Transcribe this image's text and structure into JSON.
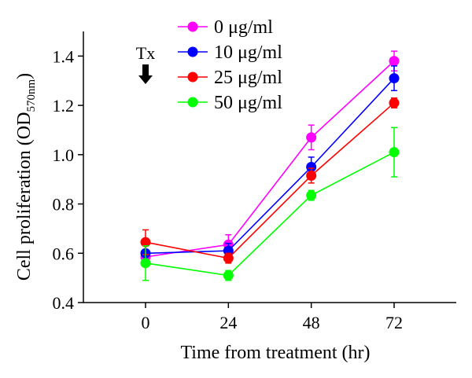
{
  "chart_data": {
    "type": "line",
    "xlabel": "Time from treatment (hr)",
    "ylabel_main": "Cell proliferation (OD",
    "ylabel_sub": "570nm",
    "ylabel_close": ")",
    "x": [
      0,
      24,
      48,
      72
    ],
    "x_tick_labels": [
      "0",
      "24",
      "48",
      "72"
    ],
    "xlim": [
      -18,
      90
    ],
    "ylim": [
      0.4,
      1.5
    ],
    "y_ticks": [
      0.4,
      0.6,
      0.8,
      1.0,
      1.2,
      1.4
    ],
    "y_tick_labels": [
      "0.4",
      "0.6",
      "0.8",
      "1.0",
      "1.2",
      "1.4"
    ],
    "grid": false,
    "legend_position": "top-center",
    "series": [
      {
        "name": "0 μg/ml",
        "color": "#ff00ff",
        "values": [
          0.585,
          0.635,
          1.07,
          1.38
        ],
        "errors": [
          0.03,
          0.04,
          0.05,
          0.04
        ]
      },
      {
        "name": "10 μg/ml",
        "color": "#0000ff",
        "values": [
          0.6,
          0.61,
          0.95,
          1.31
        ],
        "errors": [
          0.03,
          0.03,
          0.04,
          0.05
        ]
      },
      {
        "name": "25 μg/ml",
        "color": "#ff0000",
        "values": [
          0.645,
          0.58,
          0.915,
          1.21
        ],
        "errors": [
          0.05,
          0.02,
          0.03,
          0.02
        ]
      },
      {
        "name": "50 μg/ml",
        "color": "#00ff00",
        "values": [
          0.56,
          0.51,
          0.835,
          1.01
        ],
        "errors": [
          0.07,
          0.02,
          0.02,
          0.1
        ]
      }
    ],
    "annotation": {
      "text": "Tx",
      "x": 0,
      "arrow": "down"
    }
  }
}
